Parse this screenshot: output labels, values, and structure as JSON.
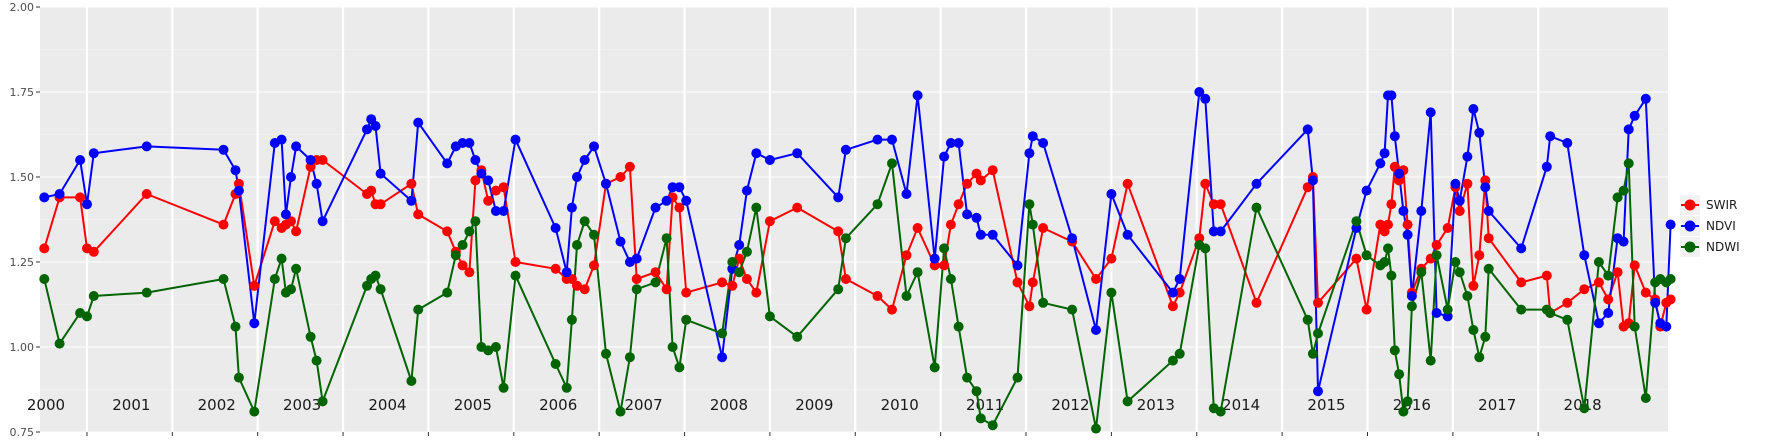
{
  "chart_data": {
    "type": "line",
    "title": "",
    "xlabel": "",
    "ylabel": "",
    "xlim": [
      1999.95,
      2019.02
    ],
    "ylim": [
      0.75,
      2.0
    ],
    "y_ticks": [
      "0.75",
      "1.00",
      "1.25",
      "1.50",
      "1.75",
      "2.00"
    ],
    "y_tick_values": [
      0.75,
      1.0,
      1.25,
      1.5,
      1.75,
      2.0
    ],
    "year_labels": [
      "2000",
      "2001",
      "2002",
      "2003",
      "2004",
      "2005",
      "2006",
      "2007",
      "2008",
      "2009",
      "2010",
      "2011",
      "2012",
      "2013",
      "2014",
      "2015",
      "2016",
      "2017",
      "2018"
    ],
    "year_values": [
      2000,
      2001,
      2002,
      2003,
      2004,
      2005,
      2006,
      2007,
      2008,
      2009,
      2010,
      2011,
      2012,
      2013,
      2014,
      2015,
      2016,
      2017,
      2018
    ],
    "grid": true,
    "marker": "circle",
    "legend_position": "right",
    "series": [
      {
        "name": "SWIR",
        "color": "#ff0000",
        "x": [
          2000.0,
          2000.18,
          2000.42,
          2000.5,
          2000.58,
          2001.2,
          2002.1,
          2002.24,
          2002.28,
          2002.46,
          2002.7,
          2002.78,
          2002.83,
          2002.89,
          2002.95,
          2003.12,
          2003.19,
          2003.26,
          2003.78,
          2003.83,
          2003.88,
          2003.94,
          2004.3,
          2004.38,
          2004.72,
          2004.82,
          2004.9,
          2004.98,
          2005.05,
          2005.12,
          2005.2,
          2005.29,
          2005.38,
          2005.52,
          2005.99,
          2006.12,
          2006.18,
          2006.24,
          2006.33,
          2006.44,
          2006.58,
          2006.75,
          2006.86,
          2006.94,
          2007.16,
          2007.29,
          2007.36,
          2007.44,
          2007.52,
          2007.94,
          2008.06,
          2008.14,
          2008.23,
          2008.34,
          2008.5,
          2008.82,
          2009.3,
          2009.39,
          2009.76,
          2009.93,
          2010.1,
          2010.23,
          2010.43,
          2010.54,
          2010.62,
          2010.71,
          2010.81,
          2010.92,
          2010.97,
          2011.11,
          2011.4,
          2011.54,
          2011.58,
          2011.7,
          2012.04,
          2012.32,
          2012.5,
          2012.69,
          2013.22,
          2013.3,
          2013.53,
          2013.6,
          2013.7,
          2013.78,
          2014.2,
          2014.8,
          2014.86,
          2014.92,
          2015.37,
          2015.49,
          2015.65,
          2015.7,
          2015.74,
          2015.78,
          2015.82,
          2015.87,
          2015.92,
          2015.97,
          2016.02,
          2016.13,
          2016.24,
          2016.31,
          2016.44,
          2016.53,
          2016.58,
          2016.67,
          2016.74,
          2016.81,
          2016.88,
          2016.92,
          2017.3,
          2017.6,
          2017.64,
          2017.84,
          2018.04,
          2018.21,
          2018.32,
          2018.43,
          2018.5,
          2018.56,
          2018.63,
          2018.76,
          2018.87,
          2018.93,
          2019.0,
          2019.05
        ],
        "values": [
          1.29,
          1.44,
          1.44,
          1.29,
          1.28,
          1.45,
          1.36,
          1.45,
          1.48,
          1.18,
          1.37,
          1.35,
          1.36,
          1.37,
          1.34,
          1.53,
          1.55,
          1.55,
          1.45,
          1.46,
          1.42,
          1.42,
          1.48,
          1.39,
          1.34,
          1.28,
          1.24,
          1.22,
          1.49,
          1.52,
          1.43,
          1.46,
          1.47,
          1.25,
          1.23,
          1.2,
          1.2,
          1.18,
          1.17,
          1.24,
          1.48,
          1.5,
          1.53,
          1.2,
          1.22,
          1.17,
          1.44,
          1.41,
          1.16,
          1.19,
          1.18,
          1.26,
          1.2,
          1.16,
          1.37,
          1.41,
          1.34,
          1.2,
          1.15,
          1.11,
          1.27,
          1.35,
          1.24,
          1.24,
          1.36,
          1.42,
          1.48,
          1.51,
          1.49,
          1.52,
          1.19,
          1.12,
          1.19,
          1.35,
          1.31,
          1.2,
          1.26,
          1.48,
          1.12,
          1.16,
          1.32,
          1.48,
          1.42,
          1.42,
          1.13,
          1.47,
          1.5,
          1.13,
          1.26,
          1.11,
          1.36,
          1.34,
          1.36,
          1.42,
          1.53,
          1.49,
          1.52,
          1.36,
          1.16,
          1.23,
          1.26,
          1.3,
          1.35,
          1.47,
          1.4,
          1.48,
          1.18,
          1.27,
          1.49,
          1.32,
          1.19,
          1.21,
          1.1,
          1.13,
          1.17,
          1.19,
          1.14,
          1.22,
          1.06,
          1.07,
          1.24,
          1.16,
          1.14,
          1.06,
          1.13,
          1.14
        ]
      },
      {
        "name": "NDVI",
        "color": "#0000ff",
        "x": [
          2000.0,
          2000.18,
          2000.42,
          2000.5,
          2000.58,
          2001.2,
          2002.1,
          2002.24,
          2002.28,
          2002.46,
          2002.7,
          2002.78,
          2002.83,
          2002.89,
          2002.95,
          2003.12,
          2003.19,
          2003.26,
          2003.78,
          2003.83,
          2003.88,
          2003.94,
          2004.3,
          2004.38,
          2004.72,
          2004.82,
          2004.9,
          2004.98,
          2005.05,
          2005.12,
          2005.2,
          2005.29,
          2005.38,
          2005.52,
          2005.99,
          2006.12,
          2006.18,
          2006.24,
          2006.33,
          2006.44,
          2006.58,
          2006.75,
          2006.86,
          2006.94,
          2007.16,
          2007.29,
          2007.36,
          2007.44,
          2007.52,
          2007.94,
          2008.06,
          2008.14,
          2008.23,
          2008.34,
          2008.5,
          2008.82,
          2009.3,
          2009.39,
          2009.76,
          2009.93,
          2010.1,
          2010.23,
          2010.43,
          2010.54,
          2010.62,
          2010.71,
          2010.81,
          2010.92,
          2010.97,
          2011.11,
          2011.4,
          2011.54,
          2011.58,
          2011.7,
          2012.04,
          2012.32,
          2012.5,
          2012.69,
          2013.22,
          2013.3,
          2013.53,
          2013.6,
          2013.7,
          2013.78,
          2014.2,
          2014.8,
          2014.86,
          2014.92,
          2015.37,
          2015.49,
          2015.65,
          2015.7,
          2015.74,
          2015.78,
          2015.82,
          2015.87,
          2015.92,
          2015.97,
          2016.02,
          2016.13,
          2016.24,
          2016.31,
          2016.44,
          2016.53,
          2016.58,
          2016.67,
          2016.74,
          2016.81,
          2016.88,
          2016.92,
          2017.3,
          2017.6,
          2017.64,
          2017.84,
          2018.04,
          2018.21,
          2018.32,
          2018.43,
          2018.5,
          2018.56,
          2018.63,
          2018.76,
          2018.87,
          2018.93,
          2019.0,
          2019.05
        ],
        "values": [
          1.44,
          1.45,
          1.55,
          1.42,
          1.57,
          1.59,
          1.58,
          1.52,
          1.46,
          1.07,
          1.6,
          1.61,
          1.39,
          1.5,
          1.59,
          1.55,
          1.48,
          1.37,
          1.64,
          1.67,
          1.65,
          1.51,
          1.43,
          1.66,
          1.54,
          1.59,
          1.6,
          1.6,
          1.55,
          1.51,
          1.49,
          1.4,
          1.4,
          1.61,
          1.35,
          1.22,
          1.41,
          1.5,
          1.55,
          1.59,
          1.48,
          1.31,
          1.25,
          1.26,
          1.41,
          1.43,
          1.47,
          1.47,
          1.43,
          0.97,
          1.23,
          1.3,
          1.46,
          1.57,
          1.55,
          1.57,
          1.44,
          1.58,
          1.61,
          1.61,
          1.45,
          1.74,
          1.26,
          1.56,
          1.6,
          1.6,
          1.39,
          1.38,
          1.33,
          1.33,
          1.24,
          1.57,
          1.62,
          1.6,
          1.32,
          1.05,
          1.45,
          1.33,
          1.16,
          1.2,
          1.75,
          1.73,
          1.34,
          1.34,
          1.48,
          1.64,
          1.49,
          0.87,
          1.35,
          1.46,
          1.54,
          1.57,
          1.74,
          1.74,
          1.62,
          1.51,
          1.4,
          1.33,
          1.15,
          1.4,
          1.69,
          1.1,
          1.09,
          1.48,
          1.43,
          1.56,
          1.7,
          1.63,
          1.47,
          1.4,
          1.29,
          1.53,
          1.62,
          1.6,
          1.27,
          1.07,
          1.1,
          1.32,
          1.31,
          1.64,
          1.68,
          1.73,
          1.13,
          1.07,
          1.06,
          1.36
        ]
      },
      {
        "name": "NDWI",
        "color": "#006400",
        "x": [
          2000.0,
          2000.18,
          2000.42,
          2000.5,
          2000.58,
          2001.2,
          2002.1,
          2002.24,
          2002.28,
          2002.46,
          2002.7,
          2002.78,
          2002.83,
          2002.89,
          2002.95,
          2003.12,
          2003.19,
          2003.26,
          2003.78,
          2003.83,
          2003.88,
          2003.94,
          2004.3,
          2004.38,
          2004.72,
          2004.82,
          2004.9,
          2004.98,
          2005.05,
          2005.12,
          2005.2,
          2005.29,
          2005.38,
          2005.52,
          2005.99,
          2006.12,
          2006.18,
          2006.24,
          2006.33,
          2006.44,
          2006.58,
          2006.75,
          2006.86,
          2006.94,
          2007.16,
          2007.29,
          2007.36,
          2007.44,
          2007.52,
          2007.94,
          2008.06,
          2008.14,
          2008.23,
          2008.34,
          2008.5,
          2008.82,
          2009.3,
          2009.39,
          2009.76,
          2009.93,
          2010.1,
          2010.23,
          2010.43,
          2010.54,
          2010.62,
          2010.71,
          2010.81,
          2010.92,
          2010.97,
          2011.11,
          2011.4,
          2011.54,
          2011.58,
          2011.7,
          2012.04,
          2012.32,
          2012.5,
          2012.69,
          2013.22,
          2013.3,
          2013.53,
          2013.6,
          2013.7,
          2013.78,
          2014.2,
          2014.8,
          2014.86,
          2014.92,
          2015.37,
          2015.49,
          2015.65,
          2015.7,
          2015.74,
          2015.78,
          2015.82,
          2015.87,
          2015.92,
          2015.97,
          2016.02,
          2016.13,
          2016.24,
          2016.31,
          2016.44,
          2016.53,
          2016.58,
          2016.67,
          2016.74,
          2016.81,
          2016.88,
          2016.92,
          2017.3,
          2017.6,
          2017.64,
          2017.84,
          2018.04,
          2018.21,
          2018.32,
          2018.43,
          2018.5,
          2018.56,
          2018.63,
          2018.76,
          2018.87,
          2018.93,
          2019.0,
          2019.05
        ],
        "values": [
          1.2,
          1.01,
          1.1,
          1.09,
          1.15,
          1.16,
          1.2,
          1.06,
          0.91,
          0.81,
          1.2,
          1.26,
          1.16,
          1.17,
          1.23,
          1.03,
          0.96,
          0.84,
          1.18,
          1.2,
          1.21,
          1.17,
          0.9,
          1.11,
          1.16,
          1.27,
          1.3,
          1.34,
          1.37,
          1.0,
          0.99,
          1.0,
          0.88,
          1.21,
          0.95,
          0.88,
          1.08,
          1.3,
          1.37,
          1.33,
          0.98,
          0.81,
          0.97,
          1.17,
          1.19,
          1.32,
          1.0,
          0.94,
          1.08,
          1.04,
          1.25,
          1.22,
          1.28,
          1.41,
          1.09,
          1.03,
          1.17,
          1.32,
          1.42,
          1.54,
          1.15,
          1.22,
          0.94,
          1.29,
          1.2,
          1.06,
          0.91,
          0.87,
          0.79,
          0.77,
          0.91,
          1.42,
          1.36,
          1.13,
          1.11,
          0.76,
          1.16,
          0.84,
          0.96,
          0.98,
          1.3,
          1.29,
          0.82,
          0.81,
          1.41,
          1.08,
          0.98,
          1.04,
          1.37,
          1.27,
          1.24,
          1.25,
          1.29,
          1.21,
          0.99,
          0.92,
          0.81,
          0.84,
          1.12,
          1.22,
          0.96,
          1.27,
          1.11,
          1.25,
          1.22,
          1.15,
          1.05,
          0.97,
          1.03,
          1.23,
          1.11,
          1.11,
          1.1,
          1.08,
          0.82,
          1.25,
          1.21,
          1.44,
          1.46,
          1.54,
          1.06,
          0.85,
          1.19,
          1.2,
          1.19,
          1.2
        ]
      }
    ]
  }
}
